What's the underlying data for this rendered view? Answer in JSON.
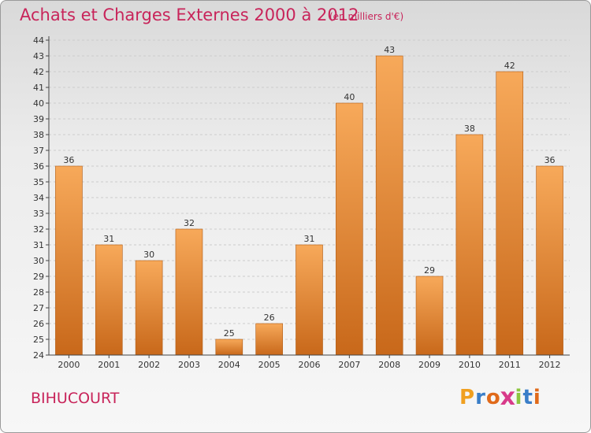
{
  "header": {
    "title": "Achats et Charges Externes 2000 à 2012",
    "subtitle": "(en milliers d'€)"
  },
  "footer": {
    "commune": "BIHUCOURT",
    "logo": {
      "text": "Proxiti",
      "letter_colors": [
        "#f0a020",
        "#3a7ec8",
        "#e06a1a",
        "#d83a8a",
        "#8cc63f",
        "#3a7ec8",
        "#e06a1a"
      ]
    }
  },
  "colors": {
    "accent": "#c8245a",
    "bar_top": "#f7a95a",
    "bar_bottom": "#c8681a",
    "bar_border": "#b05a12",
    "grid": "#cccccc",
    "axis": "#444444",
    "text": "#333333"
  },
  "chart_data": {
    "type": "bar",
    "title": "Achats et Charges Externes 2000 à 2012",
    "subtitle": "(en milliers d'€)",
    "categories": [
      "2000",
      "2001",
      "2002",
      "2003",
      "2004",
      "2005",
      "2006",
      "2007",
      "2008",
      "2009",
      "2010",
      "2011",
      "2012"
    ],
    "values": [
      36,
      31,
      30,
      32,
      25,
      26,
      31,
      40,
      43,
      29,
      38,
      42,
      36
    ],
    "data_labels": [
      "36",
      "31",
      "30",
      "32",
      "25",
      "26",
      "31",
      "40",
      "43",
      "29",
      "38",
      "42",
      "36"
    ],
    "ylim": [
      24,
      44
    ],
    "ytick_step": 1,
    "yticks": [
      "24",
      "25",
      "26",
      "27",
      "28",
      "29",
      "30",
      "31",
      "32",
      "33",
      "34",
      "35",
      "36",
      "37",
      "38",
      "39",
      "40",
      "41",
      "42",
      "43",
      "44"
    ],
    "xlabel": "",
    "ylabel": "",
    "grid": true,
    "legend": "none"
  }
}
